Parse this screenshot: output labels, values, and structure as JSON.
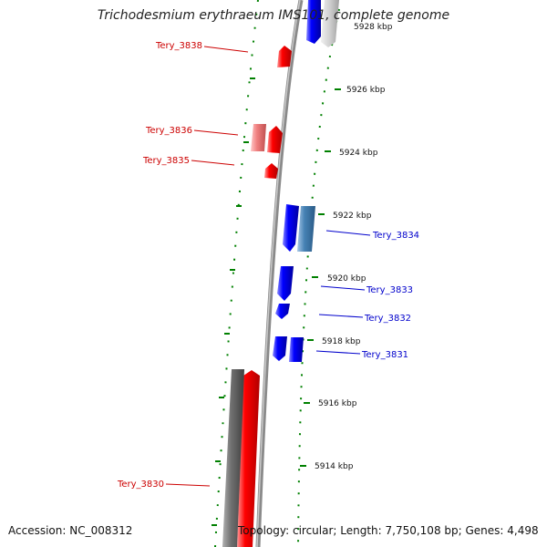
{
  "header": {
    "title": "Trichodesmium erythraeum IMS101, complete genome"
  },
  "footer": {
    "accession": "Accession: NC_008312",
    "stats": "Topology: circular; Length: 7,750,108 bp; Genes: 4,498"
  },
  "colors": {
    "forward": "#ff0000",
    "forward_light": "#f08080",
    "reverse": "#0000ff",
    "reverse_light": "#4682b4",
    "backbone": "#808080",
    "ticks": "#008000",
    "label_forward": "#cc0000",
    "label_reverse": "#0000cc"
  },
  "ruler": {
    "unit": "kbp",
    "labels": [
      "5928 kbp",
      "5926 kbp",
      "5924 kbp",
      "5922 kbp",
      "5920 kbp",
      "5918 kbp",
      "5916 kbp",
      "5914 kbp"
    ]
  },
  "features": {
    "forward": [
      "Tery_3838",
      "Tery_3836",
      "Tery_3835",
      "Tery_3830"
    ],
    "reverse": [
      "Tery_3834",
      "Tery_3833",
      "Tery_3832",
      "Tery_3831"
    ]
  }
}
